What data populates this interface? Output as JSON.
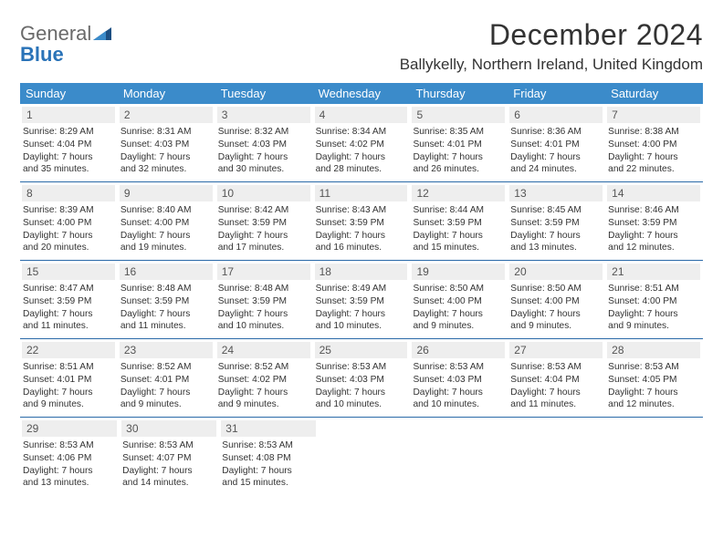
{
  "logo": {
    "word1": "General",
    "word2": "Blue"
  },
  "title": "December 2024",
  "location": "Ballykelly, Northern Ireland, United Kingdom",
  "colors": {
    "header_bg": "#3b8bca",
    "header_text": "#ffffff",
    "row_divider": "#2a6aa8",
    "daynum_bg": "#eeeeee",
    "daynum_text": "#555555",
    "body_text": "#333333",
    "logo_general": "#6a6a6a",
    "logo_blue": "#2a73b8",
    "logo_tri_dark": "#1d4f82",
    "logo_tri_light": "#3b8bca",
    "background": "#ffffff"
  },
  "daysOfWeek": [
    "Sunday",
    "Monday",
    "Tuesday",
    "Wednesday",
    "Thursday",
    "Friday",
    "Saturday"
  ],
  "weeks": [
    [
      {
        "n": "1",
        "sunrise": "8:29 AM",
        "sunset": "4:04 PM",
        "dl1": "Daylight: 7 hours",
        "dl2": "and 35 minutes."
      },
      {
        "n": "2",
        "sunrise": "8:31 AM",
        "sunset": "4:03 PM",
        "dl1": "Daylight: 7 hours",
        "dl2": "and 32 minutes."
      },
      {
        "n": "3",
        "sunrise": "8:32 AM",
        "sunset": "4:03 PM",
        "dl1": "Daylight: 7 hours",
        "dl2": "and 30 minutes."
      },
      {
        "n": "4",
        "sunrise": "8:34 AM",
        "sunset": "4:02 PM",
        "dl1": "Daylight: 7 hours",
        "dl2": "and 28 minutes."
      },
      {
        "n": "5",
        "sunrise": "8:35 AM",
        "sunset": "4:01 PM",
        "dl1": "Daylight: 7 hours",
        "dl2": "and 26 minutes."
      },
      {
        "n": "6",
        "sunrise": "8:36 AM",
        "sunset": "4:01 PM",
        "dl1": "Daylight: 7 hours",
        "dl2": "and 24 minutes."
      },
      {
        "n": "7",
        "sunrise": "8:38 AM",
        "sunset": "4:00 PM",
        "dl1": "Daylight: 7 hours",
        "dl2": "and 22 minutes."
      }
    ],
    [
      {
        "n": "8",
        "sunrise": "8:39 AM",
        "sunset": "4:00 PM",
        "dl1": "Daylight: 7 hours",
        "dl2": "and 20 minutes."
      },
      {
        "n": "9",
        "sunrise": "8:40 AM",
        "sunset": "4:00 PM",
        "dl1": "Daylight: 7 hours",
        "dl2": "and 19 minutes."
      },
      {
        "n": "10",
        "sunrise": "8:42 AM",
        "sunset": "3:59 PM",
        "dl1": "Daylight: 7 hours",
        "dl2": "and 17 minutes."
      },
      {
        "n": "11",
        "sunrise": "8:43 AM",
        "sunset": "3:59 PM",
        "dl1": "Daylight: 7 hours",
        "dl2": "and 16 minutes."
      },
      {
        "n": "12",
        "sunrise": "8:44 AM",
        "sunset": "3:59 PM",
        "dl1": "Daylight: 7 hours",
        "dl2": "and 15 minutes."
      },
      {
        "n": "13",
        "sunrise": "8:45 AM",
        "sunset": "3:59 PM",
        "dl1": "Daylight: 7 hours",
        "dl2": "and 13 minutes."
      },
      {
        "n": "14",
        "sunrise": "8:46 AM",
        "sunset": "3:59 PM",
        "dl1": "Daylight: 7 hours",
        "dl2": "and 12 minutes."
      }
    ],
    [
      {
        "n": "15",
        "sunrise": "8:47 AM",
        "sunset": "3:59 PM",
        "dl1": "Daylight: 7 hours",
        "dl2": "and 11 minutes."
      },
      {
        "n": "16",
        "sunrise": "8:48 AM",
        "sunset": "3:59 PM",
        "dl1": "Daylight: 7 hours",
        "dl2": "and 11 minutes."
      },
      {
        "n": "17",
        "sunrise": "8:48 AM",
        "sunset": "3:59 PM",
        "dl1": "Daylight: 7 hours",
        "dl2": "and 10 minutes."
      },
      {
        "n": "18",
        "sunrise": "8:49 AM",
        "sunset": "3:59 PM",
        "dl1": "Daylight: 7 hours",
        "dl2": "and 10 minutes."
      },
      {
        "n": "19",
        "sunrise": "8:50 AM",
        "sunset": "4:00 PM",
        "dl1": "Daylight: 7 hours",
        "dl2": "and 9 minutes."
      },
      {
        "n": "20",
        "sunrise": "8:50 AM",
        "sunset": "4:00 PM",
        "dl1": "Daylight: 7 hours",
        "dl2": "and 9 minutes."
      },
      {
        "n": "21",
        "sunrise": "8:51 AM",
        "sunset": "4:00 PM",
        "dl1": "Daylight: 7 hours",
        "dl2": "and 9 minutes."
      }
    ],
    [
      {
        "n": "22",
        "sunrise": "8:51 AM",
        "sunset": "4:01 PM",
        "dl1": "Daylight: 7 hours",
        "dl2": "and 9 minutes."
      },
      {
        "n": "23",
        "sunrise": "8:52 AM",
        "sunset": "4:01 PM",
        "dl1": "Daylight: 7 hours",
        "dl2": "and 9 minutes."
      },
      {
        "n": "24",
        "sunrise": "8:52 AM",
        "sunset": "4:02 PM",
        "dl1": "Daylight: 7 hours",
        "dl2": "and 9 minutes."
      },
      {
        "n": "25",
        "sunrise": "8:53 AM",
        "sunset": "4:03 PM",
        "dl1": "Daylight: 7 hours",
        "dl2": "and 10 minutes."
      },
      {
        "n": "26",
        "sunrise": "8:53 AM",
        "sunset": "4:03 PM",
        "dl1": "Daylight: 7 hours",
        "dl2": "and 10 minutes."
      },
      {
        "n": "27",
        "sunrise": "8:53 AM",
        "sunset": "4:04 PM",
        "dl1": "Daylight: 7 hours",
        "dl2": "and 11 minutes."
      },
      {
        "n": "28",
        "sunrise": "8:53 AM",
        "sunset": "4:05 PM",
        "dl1": "Daylight: 7 hours",
        "dl2": "and 12 minutes."
      }
    ],
    [
      {
        "n": "29",
        "sunrise": "8:53 AM",
        "sunset": "4:06 PM",
        "dl1": "Daylight: 7 hours",
        "dl2": "and 13 minutes."
      },
      {
        "n": "30",
        "sunrise": "8:53 AM",
        "sunset": "4:07 PM",
        "dl1": "Daylight: 7 hours",
        "dl2": "and 14 minutes."
      },
      {
        "n": "31",
        "sunrise": "8:53 AM",
        "sunset": "4:08 PM",
        "dl1": "Daylight: 7 hours",
        "dl2": "and 15 minutes."
      },
      null,
      null,
      null,
      null
    ]
  ],
  "labels": {
    "sunrise": "Sunrise: ",
    "sunset": "Sunset: "
  }
}
